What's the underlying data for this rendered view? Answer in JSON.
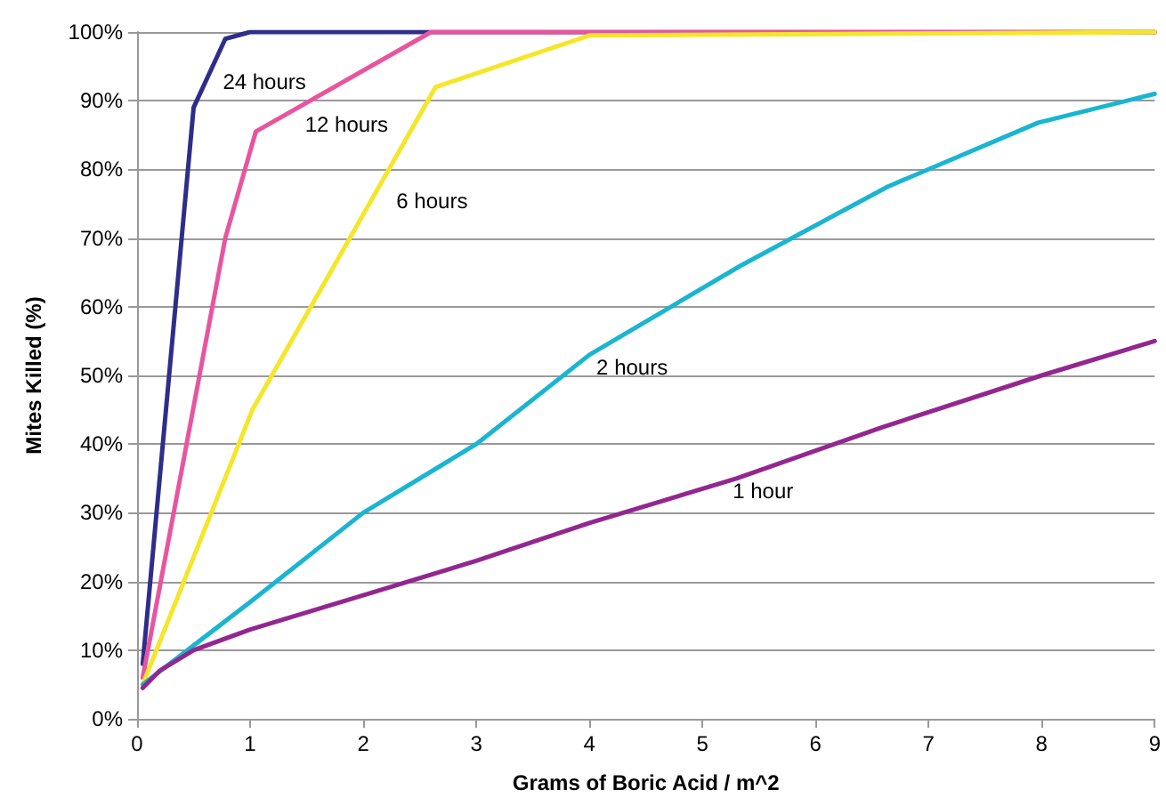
{
  "chart_data": {
    "type": "line",
    "xlabel": "Grams of Boric Acid / m^2",
    "ylabel": "Mites Killed (%)",
    "xlim": [
      0,
      9
    ],
    "xticks": [
      0,
      1,
      2,
      3,
      4,
      5,
      6,
      7,
      8,
      9
    ],
    "ylim": [
      0,
      100
    ],
    "yticks": [
      {
        "value": 0,
        "label": "0%"
      },
      {
        "value": 10,
        "label": "10%"
      },
      {
        "value": 20,
        "label": "20%"
      },
      {
        "value": 30,
        "label": "30%"
      },
      {
        "value": 40,
        "label": "40%"
      },
      {
        "value": 50,
        "label": "50%"
      },
      {
        "value": 60,
        "label": "60%"
      },
      {
        "value": 70,
        "label": "70%"
      },
      {
        "value": 80,
        "label": "80%"
      },
      {
        "value": 90,
        "label": "90%"
      },
      {
        "value": 100,
        "label": "100%"
      }
    ],
    "grid": "y",
    "legend": false,
    "marker": "none",
    "line_style": "solid",
    "series": [
      {
        "name": "24 hours",
        "color": "#2e2e8a",
        "x": [
          0.05,
          0.5,
          0.78,
          1,
          9
        ],
        "values": [
          8,
          89,
          99,
          100,
          100
        ]
      },
      {
        "name": "12 hours",
        "color": "#e8559f",
        "x": [
          0.05,
          0.78,
          1.05,
          2.6,
          9
        ],
        "values": [
          6,
          70,
          85.5,
          100,
          100
        ]
      },
      {
        "name": "6 hours",
        "color": "#f5e62a",
        "x": [
          0.05,
          1.02,
          2.64,
          4,
          9
        ],
        "values": [
          5,
          45,
          92,
          99.5,
          100
        ]
      },
      {
        "name": "2 hours",
        "color": "#1ab5d0",
        "x": [
          0.05,
          1,
          2,
          3,
          4,
          5.34,
          6.64,
          7.97,
          9
        ],
        "values": [
          5,
          17,
          30,
          40,
          53,
          66,
          77.5,
          86.8,
          91
        ]
      },
      {
        "name": "1 hour",
        "color": "#92278f",
        "x": [
          0.05,
          0.2,
          0.5,
          1,
          2,
          3,
          4,
          5.3,
          6.6,
          8,
          9
        ],
        "values": [
          4.5,
          7,
          10,
          13,
          18,
          23,
          28.5,
          35,
          42.5,
          50,
          55
        ]
      }
    ]
  }
}
